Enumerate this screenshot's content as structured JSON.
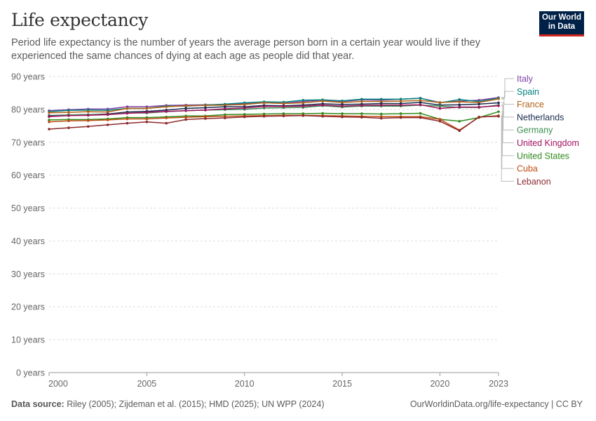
{
  "header": {
    "title": "Life expectancy",
    "subtitle": "Period life expectancy is the number of years the average person born in a certain year would live if they experienced the same chances of dying at each age as people did that year.",
    "logo_line1": "Our World",
    "logo_line2": "in Data"
  },
  "footer": {
    "source_label": "Data source:",
    "source_text": "Riley (2005); Zijdeman et al. (2015); HMD (2025); UN WPP (2024)",
    "url": "OurWorldinData.org/life-expectancy | CC BY"
  },
  "chart_data": {
    "type": "line",
    "title": "Life expectancy",
    "xlim": [
      2000,
      2023
    ],
    "ylim": [
      0,
      90
    ],
    "x_ticks": [
      "2000",
      "2005",
      "2010",
      "2015",
      "2020",
      "2023"
    ],
    "y_ticks": [
      "0 years",
      "10 years",
      "20 years",
      "30 years",
      "40 years",
      "50 years",
      "60 years",
      "70 years",
      "80 years",
      "90 years"
    ],
    "grid": "horizontal dashed",
    "legend": "right",
    "x": [
      2000,
      2001,
      2002,
      2003,
      2004,
      2005,
      2006,
      2007,
      2008,
      2009,
      2010,
      2011,
      2012,
      2013,
      2014,
      2015,
      2016,
      2017,
      2018,
      2019,
      2020,
      2021,
      2022,
      2023
    ],
    "series": [
      {
        "name": "Italy",
        "color": "#7d3fa6",
        "values": [
          79.6,
          79.9,
          80.1,
          80.1,
          80.8,
          80.8,
          81.2,
          81.3,
          81.4,
          81.5,
          81.8,
          82.0,
          81.9,
          82.4,
          82.8,
          82.4,
          82.9,
          82.8,
          83.1,
          83.4,
          82.1,
          82.5,
          82.8,
          83.6
        ]
      },
      {
        "name": "Spain",
        "color": "#00847e",
        "values": [
          79.3,
          79.7,
          79.8,
          79.7,
          80.3,
          80.3,
          81.0,
          81.0,
          81.3,
          81.6,
          82.0,
          82.3,
          82.2,
          82.8,
          82.9,
          82.6,
          83.1,
          83.1,
          83.1,
          83.4,
          82.0,
          83.0,
          82.4,
          83.4
        ]
      },
      {
        "name": "France",
        "color": "#b16214",
        "values": [
          79.0,
          79.1,
          79.3,
          79.2,
          80.3,
          80.3,
          80.8,
          81.1,
          81.2,
          81.3,
          81.5,
          82.0,
          81.8,
          82.0,
          82.5,
          82.1,
          82.4,
          82.4,
          82.5,
          82.7,
          82.1,
          82.3,
          82.1,
          83.2
        ]
      },
      {
        "name": "Netherlands",
        "color": "#1a2b4e",
        "values": [
          78.1,
          78.3,
          78.4,
          78.6,
          79.2,
          79.4,
          79.8,
          80.3,
          80.5,
          80.8,
          80.8,
          81.2,
          81.1,
          81.3,
          81.7,
          81.5,
          81.6,
          81.8,
          81.8,
          82.1,
          81.3,
          81.4,
          81.6,
          82.0
        ]
      },
      {
        "name": "Germany",
        "color": "#3d8f52",
        "values": [
          77.9,
          78.3,
          78.4,
          78.4,
          78.9,
          78.9,
          79.3,
          79.6,
          79.8,
          79.9,
          80.0,
          80.4,
          80.5,
          80.6,
          81.1,
          80.7,
          81.0,
          81.0,
          81.0,
          81.3,
          81.0,
          80.6,
          80.6,
          81.3
        ]
      },
      {
        "name": "United Kingdom",
        "color": "#a2115f",
        "values": [
          77.8,
          78.1,
          78.2,
          78.4,
          78.8,
          79.1,
          79.4,
          79.6,
          79.8,
          80.2,
          80.4,
          80.9,
          80.9,
          81.0,
          81.3,
          81.0,
          81.2,
          81.3,
          81.3,
          81.4,
          80.3,
          80.7,
          80.7,
          81.1
        ]
      },
      {
        "name": "United States",
        "color": "#2f8a1c",
        "values": [
          76.8,
          76.9,
          76.9,
          77.1,
          77.5,
          77.5,
          77.7,
          78.0,
          78.0,
          78.4,
          78.5,
          78.6,
          78.7,
          78.7,
          78.8,
          78.7,
          78.7,
          78.6,
          78.7,
          78.8,
          77.0,
          76.4,
          77.5,
          79.3
        ]
      },
      {
        "name": "Cuba",
        "color": "#c14c13",
        "values": [
          76.2,
          76.5,
          76.6,
          76.8,
          77.1,
          77.1,
          77.4,
          77.6,
          77.8,
          77.9,
          78.0,
          78.1,
          78.2,
          78.2,
          78.1,
          78.0,
          77.9,
          77.8,
          77.8,
          77.8,
          77.0,
          73.7,
          77.6,
          78.1
        ]
      },
      {
        "name": "Lebanon",
        "color": "#8c2a2f",
        "values": [
          74.0,
          74.4,
          74.8,
          75.3,
          75.8,
          76.2,
          75.8,
          76.9,
          77.2,
          77.4,
          77.7,
          77.9,
          78.0,
          78.1,
          77.9,
          77.7,
          77.6,
          77.3,
          77.5,
          77.5,
          76.4,
          73.5,
          77.7,
          77.9
        ]
      }
    ]
  }
}
